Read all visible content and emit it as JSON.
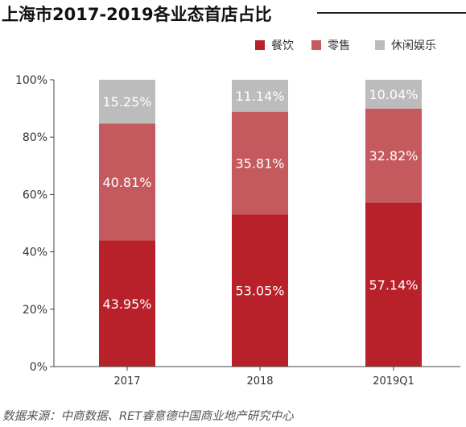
{
  "title": "上海市2017-2019各业态首店占比",
  "source": "数据来源：中商数据、RET睿意德中国商业地产研究中心",
  "colors": {
    "dining": "#b8202a",
    "retail": "#c55a5e",
    "leisure": "#bcbcbc",
    "axis": "#444444",
    "text": "#333333",
    "label": "#ffffff"
  },
  "chart_data": {
    "type": "bar",
    "stacked": true,
    "categories": [
      "2017",
      "2018",
      "2019Q1"
    ],
    "series": [
      {
        "name": "餐饮",
        "color": "#b8202a",
        "values": [
          43.95,
          53.05,
          57.14
        ],
        "labels": [
          "43.95%",
          "53.05%",
          "57.14%"
        ]
      },
      {
        "name": "零售",
        "color": "#c55a5e",
        "values": [
          40.81,
          35.81,
          32.82
        ],
        "labels": [
          "40.81%",
          "35.81%",
          "32.82%"
        ]
      },
      {
        "name": "休闲娱乐",
        "color": "#bcbcbc",
        "values": [
          15.25,
          11.14,
          10.04
        ],
        "labels": [
          "15.25%",
          "11.14%",
          "10.04%"
        ]
      }
    ],
    "ylim": [
      0,
      100
    ],
    "yticks": [
      "0%",
      "20%",
      "40%",
      "60%",
      "80%",
      "100%"
    ],
    "legend_position": "top-right",
    "grid": false
  }
}
